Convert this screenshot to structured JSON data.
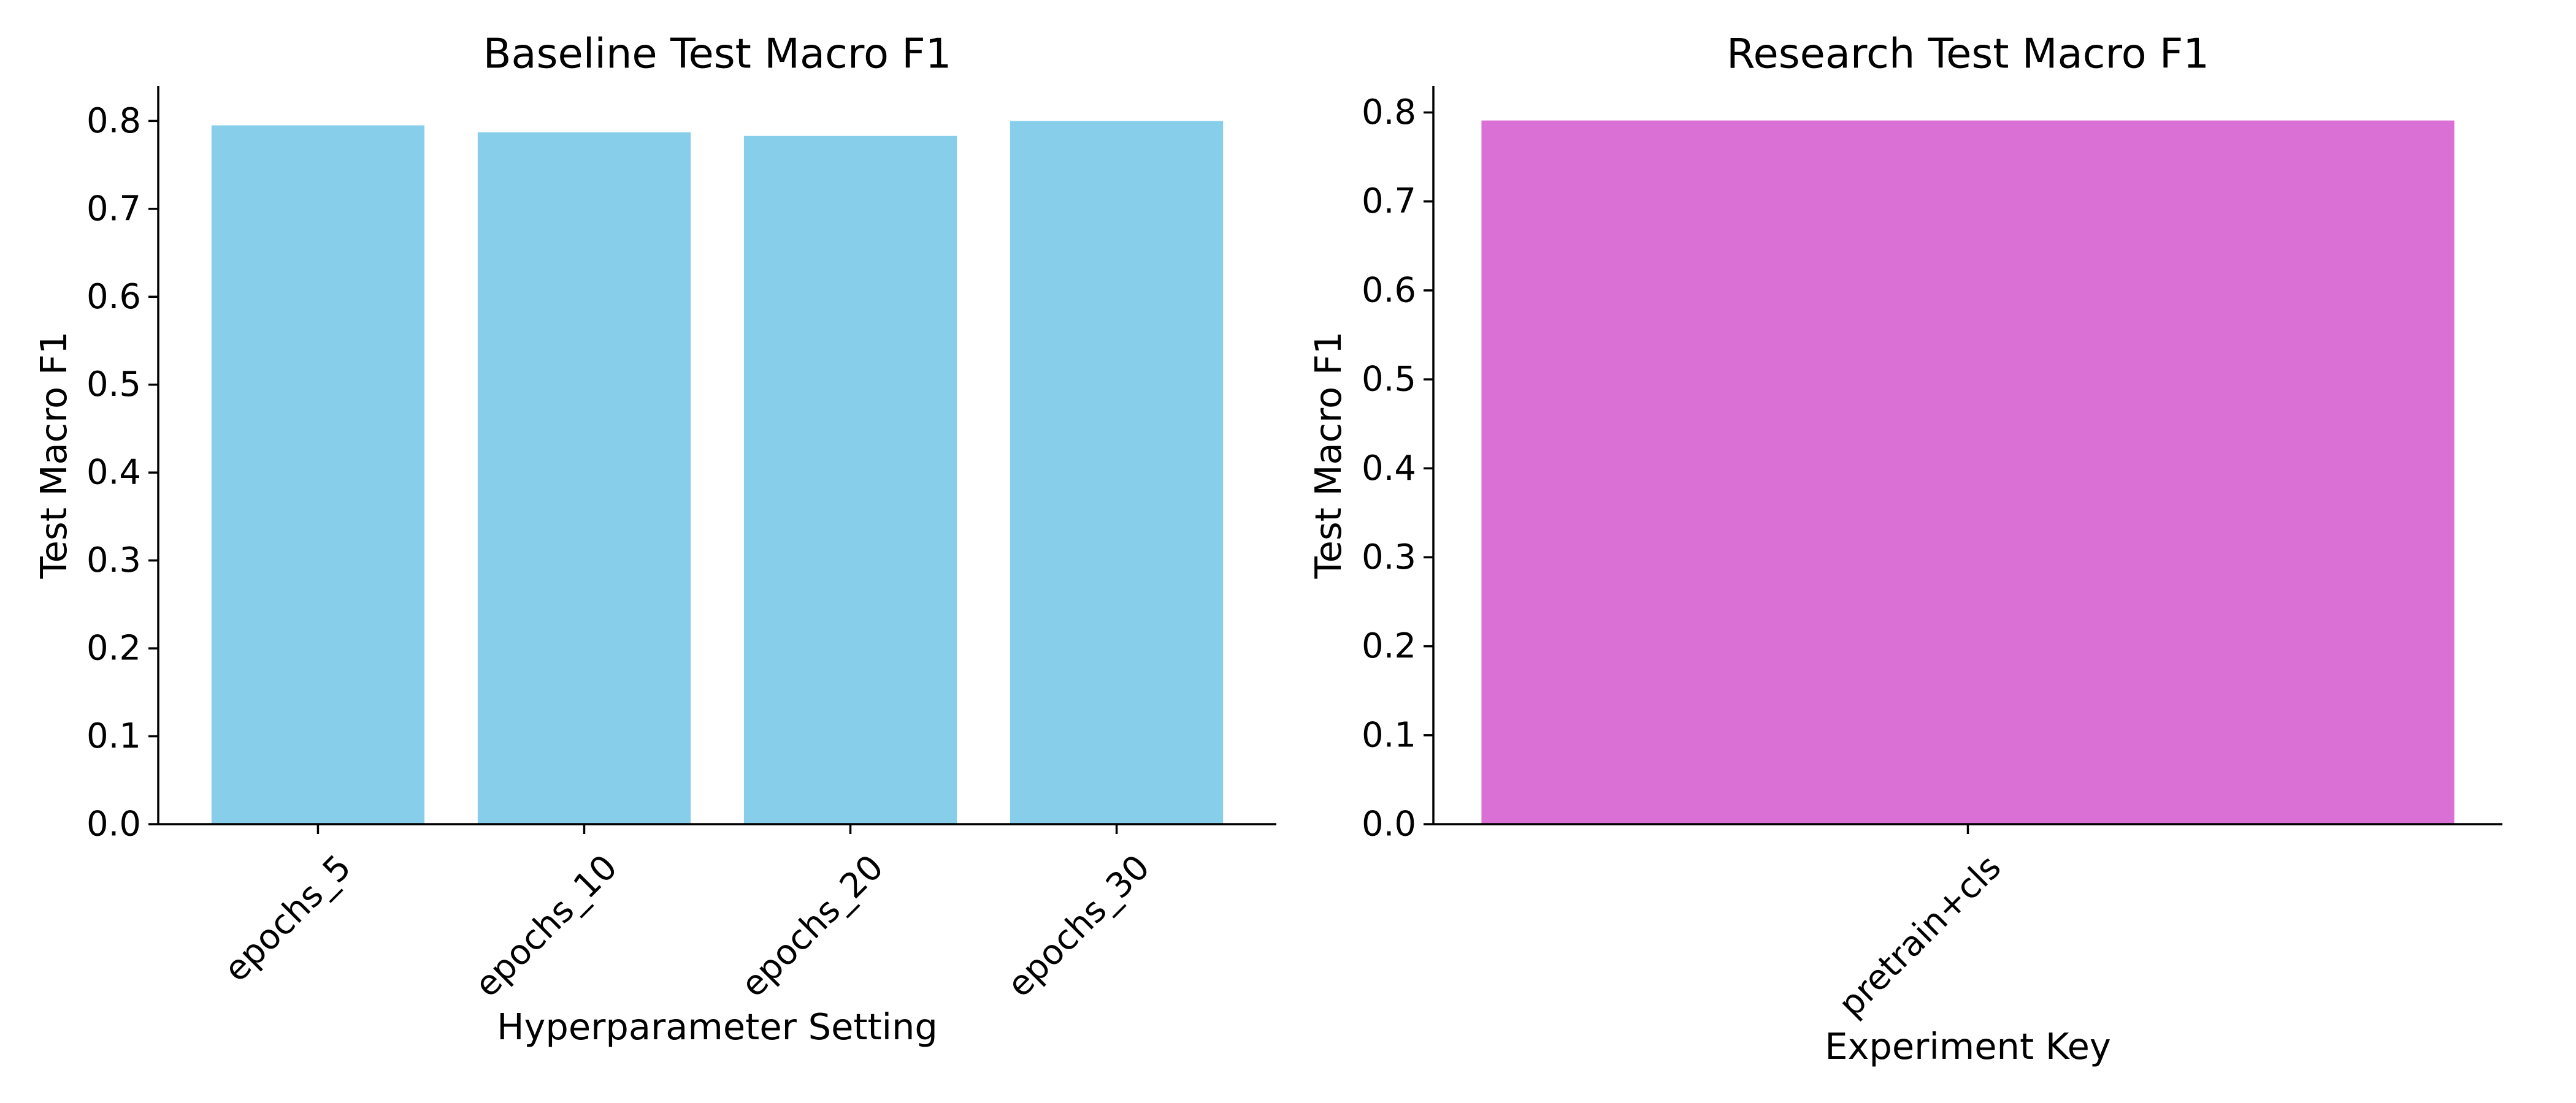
{
  "chart_data": [
    {
      "type": "bar",
      "title": "Baseline Test Macro F1",
      "xlabel": "Hyperparameter Setting",
      "ylabel": "Test Macro F1",
      "categories": [
        "epochs_5",
        "epochs_10",
        "epochs_20",
        "epochs_30"
      ],
      "values": [
        0.795,
        0.787,
        0.783,
        0.8
      ],
      "ylim": [
        0,
        0.84
      ],
      "yticks": [
        "0.0",
        "0.1",
        "0.2",
        "0.3",
        "0.4",
        "0.5",
        "0.6",
        "0.7",
        "0.8"
      ],
      "color": "#87CEEB",
      "grid": false,
      "legend": "none"
    },
    {
      "type": "bar",
      "title": "Research Test Macro F1",
      "xlabel": "Experiment Key",
      "ylabel": "Test Macro F1",
      "categories": [
        "pretrain+cls"
      ],
      "values": [
        0.791
      ],
      "ylim": [
        0,
        0.83
      ],
      "yticks": [
        "0.0",
        "0.1",
        "0.2",
        "0.3",
        "0.4",
        "0.5",
        "0.6",
        "0.7",
        "0.8"
      ],
      "color": "#DA70D6",
      "grid": false,
      "legend": "none"
    }
  ]
}
